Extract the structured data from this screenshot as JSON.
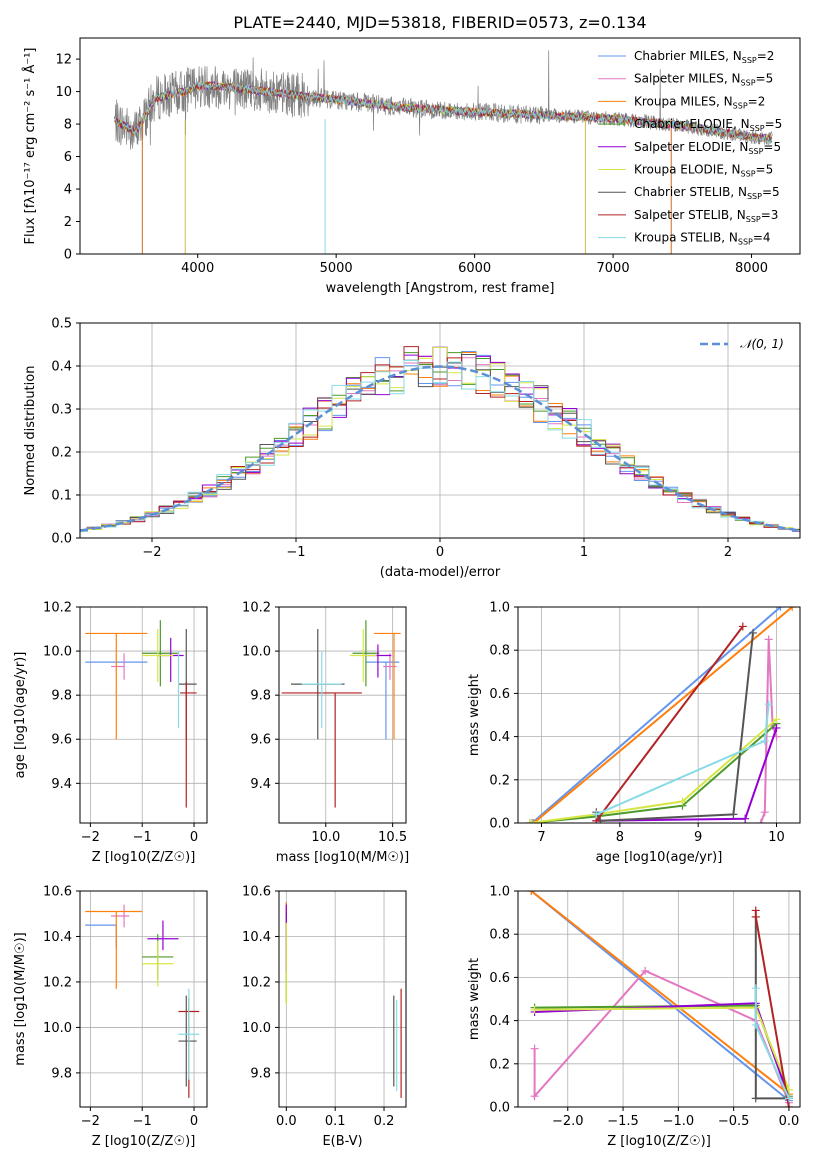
{
  "figure": {
    "title": "PLATE=2440, MJD=53818, FIBERID=0573, z=0.134"
  },
  "model_colors": [
    "#6495ed",
    "#e377c2",
    "#ff7f0e",
    "#4c9a2a",
    "#9400d3",
    "#d6e646",
    "#555555",
    "#b22222",
    "#87dbe6"
  ],
  "chart_data": [
    {
      "id": "spectrum",
      "type": "line",
      "xlabel": "wavelength [Angstrom, rest frame]",
      "ylabel": "Flux [fλ10⁻¹⁷ erg cm⁻² s⁻¹ Å⁻¹]",
      "xlim": [
        3150,
        8350
      ],
      "ylim": [
        0,
        13.3
      ],
      "xticks": [
        4000,
        5000,
        6000,
        7000,
        8000
      ],
      "yticks": [
        0,
        2,
        4,
        6,
        8,
        10,
        12
      ],
      "data_color": "#808080",
      "data_range": [
        3400,
        8150
      ],
      "continuum": {
        "x": [
          3400,
          3550,
          3700,
          3900,
          4000,
          4200,
          4500,
          5000,
          5500,
          6000,
          6500,
          7000,
          7500,
          8000,
          8150
        ],
        "y": [
          8.2,
          7.5,
          9.6,
          10.0,
          10.4,
          10.3,
          10.0,
          9.5,
          9.0,
          8.75,
          8.55,
          8.35,
          7.9,
          7.2,
          7.1
        ]
      },
      "legend": [
        {
          "name": "Chabrier MILES, N",
          "sub": "SSP",
          "val": "=2"
        },
        {
          "name": "Salpeter MILES, N",
          "sub": "SSP",
          "val": "=5"
        },
        {
          "name": "Kroupa MILES, N",
          "sub": "SSP",
          "val": "=2"
        },
        {
          "name": "Chabrier ELODIE, N",
          "sub": "SSP",
          "val": "=5"
        },
        {
          "name": "Salpeter ELODIE, N",
          "sub": "SSP",
          "val": "=5"
        },
        {
          "name": "Kroupa ELODIE, N",
          "sub": "SSP",
          "val": "=5"
        },
        {
          "name": "Chabrier STELIB, N",
          "sub": "SSP",
          "val": "=5"
        },
        {
          "name": "Salpeter STELIB, N",
          "sub": "SSP",
          "val": "=3"
        },
        {
          "name": "Kroupa STELIB, N",
          "sub": "SSP",
          "val": "=4"
        }
      ]
    },
    {
      "id": "residuals",
      "type": "line",
      "xlabel": "(data-model)/error",
      "ylabel": "Normed distribution",
      "xlim": [
        -2.5,
        2.5
      ],
      "ylim": [
        0,
        0.5
      ],
      "xticks": [
        -2,
        -1,
        0,
        1,
        2
      ],
      "yticks": [
        0.0,
        0.1,
        0.2,
        0.3,
        0.4,
        0.5
      ],
      "bin_width": 0.1,
      "legend": "𝒩(0, 1)",
      "gaussian": {
        "mu": 0,
        "sigma": 1,
        "color": "#5b8fd6"
      }
    },
    {
      "id": "age-vs-Z",
      "type": "scatter",
      "xlabel": "Z [log10(Z/Z☉)]",
      "ylabel": "age  [log10(age/yr)]",
      "xlim": [
        -2.2,
        0.25
      ],
      "ylim": [
        9.22,
        10.2
      ],
      "xticks": [
        -2,
        -1,
        0
      ],
      "yticks": [
        9.4,
        9.6,
        9.8,
        10.0,
        10.2
      ],
      "points": [
        {
          "x": -1.5,
          "y": 9.95,
          "xerr": [
            0.6,
            0.6
          ],
          "yerr": [
            0.0,
            0.0
          ]
        },
        {
          "x": -1.35,
          "y": 9.93,
          "xerr": [
            0.25,
            0.0
          ],
          "yerr": [
            0.06,
            0.06
          ]
        },
        {
          "x": -1.5,
          "y": 10.08,
          "xerr": [
            0.6,
            0.6
          ],
          "yerr": [
            0.48,
            0.0
          ]
        },
        {
          "x": -0.65,
          "y": 9.99,
          "xerr": [
            0.35,
            0.35
          ],
          "yerr": [
            0.15,
            0.15
          ]
        },
        {
          "x": -0.45,
          "y": 9.98,
          "xerr": [
            0.25,
            0.25
          ],
          "yerr": [
            0.12,
            0.08
          ]
        },
        {
          "x": -0.7,
          "y": 9.98,
          "xerr": [
            0.3,
            0.3
          ],
          "yerr": [
            0.12,
            0.12
          ]
        },
        {
          "x": -0.15,
          "y": 9.85,
          "xerr": [
            0.15,
            0.2
          ],
          "yerr": [
            0.25,
            0.25
          ]
        },
        {
          "x": -0.15,
          "y": 9.81,
          "xerr": [
            0.12,
            0.2
          ],
          "yerr": [
            0.52,
            0.05
          ]
        },
        {
          "x": -0.3,
          "y": 9.85,
          "xerr": [
            0.0,
            0.0
          ],
          "yerr": [
            0.2,
            0.15
          ]
        }
      ]
    },
    {
      "id": "age-vs-mass",
      "type": "scatter",
      "xlabel": "mass [log10(M/M☉)]",
      "ylabel": "",
      "xlim": [
        9.65,
        10.6
      ],
      "ylim": [
        9.22,
        10.2
      ],
      "xticks": [
        10.0,
        10.5
      ],
      "yticks": [
        9.4,
        9.6,
        9.8,
        10.0,
        10.2
      ],
      "points": [
        {
          "x": 10.45,
          "y": 9.95,
          "xerr": [
            0.15,
            0.1
          ],
          "yerr": [
            0.35,
            0.0
          ]
        },
        {
          "x": 10.48,
          "y": 9.93,
          "xerr": [
            0.05,
            0.05
          ],
          "yerr": [
            0.06,
            0.06
          ]
        },
        {
          "x": 10.51,
          "y": 10.08,
          "xerr": [
            0.15,
            0.05
          ],
          "yerr": [
            0.48,
            0.0
          ]
        },
        {
          "x": 10.3,
          "y": 9.99,
          "xerr": [
            0.1,
            0.1
          ],
          "yerr": [
            0.15,
            0.15
          ]
        },
        {
          "x": 10.39,
          "y": 9.98,
          "xerr": [
            0.1,
            0.1
          ],
          "yerr": [
            0.1,
            0.05
          ]
        },
        {
          "x": 10.28,
          "y": 9.98,
          "xerr": [
            0.1,
            0.1
          ],
          "yerr": [
            0.12,
            0.12
          ]
        },
        {
          "x": 9.94,
          "y": 9.85,
          "xerr": [
            0.2,
            0.2
          ],
          "yerr": [
            0.25,
            0.25
          ]
        },
        {
          "x": 10.07,
          "y": 9.81,
          "xerr": [
            0.4,
            0.2
          ],
          "yerr": [
            0.52,
            0.0
          ]
        },
        {
          "x": 9.97,
          "y": 9.85,
          "xerr": [
            0.15,
            0.15
          ],
          "yerr": [
            0.2,
            0.15
          ]
        }
      ]
    },
    {
      "id": "weight-vs-age",
      "type": "line",
      "xlabel": "age  [log10(age/yr)]",
      "ylabel": "mass weight",
      "xlim": [
        6.7,
        10.3
      ],
      "ylim": [
        0,
        1
      ],
      "xticks": [
        7,
        8,
        9,
        10
      ],
      "yticks": [
        0.0,
        0.2,
        0.4,
        0.6,
        0.8,
        1.0
      ],
      "series": [
        {
          "x": [
            6.88,
            10.05
          ],
          "y": [
            0.0,
            1.0
          ]
        },
        {
          "x": [
            9.8,
            9.85,
            9.9,
            9.95,
            10.0
          ],
          "y": [
            0.0,
            0.05,
            0.85,
            0.45,
            0.4
          ]
        },
        {
          "x": [
            6.9,
            10.2
          ],
          "y": [
            0.0,
            1.0
          ]
        },
        {
          "x": [
            6.85,
            7.7,
            8.8,
            10.0
          ],
          "y": [
            0.0,
            0.03,
            0.08,
            0.46
          ]
        },
        {
          "x": [
            7.7,
            9.6,
            10.0
          ],
          "y": [
            0.01,
            0.02,
            0.44
          ]
        },
        {
          "x": [
            6.85,
            7.7,
            8.8,
            10.0
          ],
          "y": [
            0.0,
            0.04,
            0.1,
            0.48
          ]
        },
        {
          "x": [
            7.7,
            7.75,
            9.45,
            9.7
          ],
          "y": [
            0.05,
            0.01,
            0.04,
            0.88
          ]
        },
        {
          "x": [
            7.7,
            9.57
          ],
          "y": [
            0.01,
            0.91
          ]
        },
        {
          "x": [
            7.7,
            9.85,
            9.9
          ],
          "y": [
            0.04,
            0.38,
            0.55
          ]
        }
      ]
    },
    {
      "id": "mass-vs-Z",
      "type": "scatter",
      "xlabel": "Z [log10(Z/Z☉)]",
      "ylabel": "mass [log10(M/M☉)]",
      "xlim": [
        -2.2,
        0.25
      ],
      "ylim": [
        9.65,
        10.6
      ],
      "xticks": [
        -2,
        -1,
        0
      ],
      "yticks": [
        9.8,
        10.0,
        10.2,
        10.4,
        10.6
      ],
      "points": [
        {
          "x": -1.5,
          "y": 10.45,
          "xerr": [
            0.6,
            0.0
          ],
          "yerr": [
            0.1,
            0.0
          ]
        },
        {
          "x": -1.35,
          "y": 10.49,
          "xerr": [
            0.25,
            0.1
          ],
          "yerr": [
            0.05,
            0.05
          ]
        },
        {
          "x": -1.5,
          "y": 10.51,
          "xerr": [
            0.6,
            0.5
          ],
          "yerr": [
            0.34,
            0.0
          ]
        },
        {
          "x": -0.7,
          "y": 10.31,
          "xerr": [
            0.3,
            0.3
          ],
          "yerr": [
            0.1,
            0.1
          ]
        },
        {
          "x": -0.6,
          "y": 10.39,
          "xerr": [
            0.3,
            0.3
          ],
          "yerr": [
            0.05,
            0.08
          ]
        },
        {
          "x": -0.7,
          "y": 10.28,
          "xerr": [
            0.3,
            0.3
          ],
          "yerr": [
            0.1,
            0.1
          ]
        },
        {
          "x": -0.15,
          "y": 9.94,
          "xerr": [
            0.15,
            0.2
          ],
          "yerr": [
            0.2,
            0.2
          ]
        },
        {
          "x": -0.1,
          "y": 10.07,
          "xerr": [
            0.2,
            0.2
          ],
          "yerr": [
            0.38,
            0.06
          ]
        },
        {
          "x": -0.1,
          "y": 9.97,
          "xerr": [
            0.2,
            0.2
          ],
          "yerr": [
            0.2,
            0.2
          ]
        }
      ]
    },
    {
      "id": "mass-vs-ebv",
      "type": "scatter",
      "xlabel": "E(B-V)",
      "ylabel": "",
      "xlim": [
        -0.015,
        0.245
      ],
      "ylim": [
        9.65,
        10.6
      ],
      "xticks": [
        0.0,
        0.1,
        0.2
      ],
      "yticks": [
        9.8,
        10.0,
        10.2,
        10.4,
        10.6
      ],
      "points": [
        {
          "x": 0.0,
          "y": 10.45,
          "xerr": [
            0.0,
            0.0
          ],
          "yerr": [
            0.1,
            0.1
          ]
        },
        {
          "x": 0.0,
          "y": 10.49,
          "xerr": [
            0.0,
            0.0
          ],
          "yerr": [
            0.06,
            0.06
          ]
        },
        {
          "x": 0.0,
          "y": 10.51,
          "xerr": [
            0.0,
            0.0
          ],
          "yerr": [
            0.2,
            0.04
          ]
        },
        {
          "x": 0.0,
          "y": 10.31,
          "xerr": [
            0.0,
            0.0
          ],
          "yerr": [
            0.2,
            0.2
          ]
        },
        {
          "x": 0.0,
          "y": 10.39,
          "xerr": [
            0.0,
            0.0
          ],
          "yerr": [
            0.15,
            0.15
          ]
        },
        {
          "x": 0.0,
          "y": 10.28,
          "xerr": [
            0.0,
            0.0
          ],
          "yerr": [
            0.18,
            0.18
          ]
        },
        {
          "x": 0.22,
          "y": 9.94,
          "xerr": [
            0.0,
            0.0
          ],
          "yerr": [
            0.2,
            0.2
          ]
        },
        {
          "x": 0.235,
          "y": 10.07,
          "xerr": [
            0.0,
            0.0
          ],
          "yerr": [
            0.38,
            0.1
          ]
        },
        {
          "x": 0.226,
          "y": 9.97,
          "xerr": [
            0.0,
            0.0
          ],
          "yerr": [
            0.25,
            0.15
          ]
        }
      ]
    },
    {
      "id": "weight-vs-Z",
      "type": "line",
      "xlabel": "Z [log10(Z/Z☉)]",
      "ylabel": "mass weight",
      "xlim": [
        -2.45,
        0.1
      ],
      "ylim": [
        0,
        1
      ],
      "xticks": [
        -2.0,
        -1.5,
        -1.0,
        -0.5,
        0.0
      ],
      "yticks": [
        0.0,
        0.2,
        0.4,
        0.6,
        0.8,
        1.0
      ],
      "series": [
        {
          "x": [
            -2.33,
            0.0
          ],
          "y": [
            1.0,
            0.03
          ]
        },
        {
          "x": [
            -2.3,
            -2.3,
            -1.3,
            -0.3,
            0.0
          ],
          "y": [
            0.27,
            0.05,
            0.63,
            0.4,
            0.02
          ]
        },
        {
          "x": [
            -2.33,
            0.0
          ],
          "y": [
            1.0,
            0.06
          ]
        },
        {
          "x": [
            -2.3,
            -0.3,
            0.0
          ],
          "y": [
            0.46,
            0.47,
            0.05
          ]
        },
        {
          "x": [
            -2.3,
            -0.3,
            0.0
          ],
          "y": [
            0.44,
            0.48,
            0.04
          ]
        },
        {
          "x": [
            -2.3,
            -0.3,
            0.0
          ],
          "y": [
            0.45,
            0.46,
            0.08
          ]
        },
        {
          "x": [
            -0.3,
            -0.3,
            0.0
          ],
          "y": [
            0.88,
            0.04,
            0.04
          ]
        },
        {
          "x": [
            -0.3,
            -0.3,
            0.0
          ],
          "y": [
            0.91,
            0.88,
            0.0
          ]
        },
        {
          "x": [
            -0.3,
            -0.3,
            0.0
          ],
          "y": [
            0.55,
            0.38,
            0.04
          ]
        }
      ]
    }
  ]
}
